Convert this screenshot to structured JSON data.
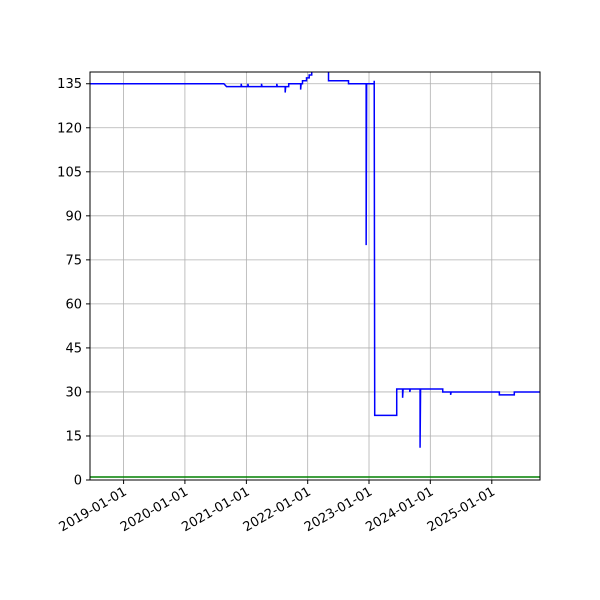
{
  "chart_data": {
    "type": "line",
    "title": "",
    "xlabel": "",
    "ylabel": "",
    "xlim": [
      "2018-06-15",
      "2025-10-15"
    ],
    "ylim": [
      0,
      139
    ],
    "grid": true,
    "x_ticks": [
      "2019-01-01",
      "2020-01-01",
      "2021-01-01",
      "2022-01-01",
      "2023-01-01",
      "2024-01-01",
      "2025-01-01"
    ],
    "y_ticks": [
      0,
      15,
      30,
      45,
      60,
      75,
      90,
      105,
      120,
      135
    ],
    "series": [
      {
        "color": "#0000ff",
        "points": [
          [
            "2018-06-15",
            135
          ],
          [
            "2020-08-20",
            135
          ],
          [
            "2020-09-05",
            134
          ],
          [
            "2020-12-01",
            134
          ],
          [
            "2020-12-01",
            135
          ],
          [
            "2020-12-04",
            134
          ],
          [
            "2021-01-10",
            134
          ],
          [
            "2021-01-10",
            135
          ],
          [
            "2021-01-13",
            134
          ],
          [
            "2021-04-01",
            134
          ],
          [
            "2021-04-01",
            135
          ],
          [
            "2021-04-04",
            134
          ],
          [
            "2021-07-01",
            134
          ],
          [
            "2021-07-01",
            135
          ],
          [
            "2021-07-04",
            134
          ],
          [
            "2021-08-20",
            134
          ],
          [
            "2021-08-20",
            132
          ],
          [
            "2021-08-23",
            134
          ],
          [
            "2021-09-10",
            134
          ],
          [
            "2021-09-10",
            135
          ],
          [
            "2021-11-20",
            135
          ],
          [
            "2021-11-20",
            133
          ],
          [
            "2021-11-23",
            135
          ],
          [
            "2021-12-01",
            135
          ],
          [
            "2021-12-01",
            136
          ],
          [
            "2021-12-25",
            136
          ],
          [
            "2021-12-25",
            137
          ],
          [
            "2022-01-10",
            137
          ],
          [
            "2022-01-10",
            138
          ],
          [
            "2022-01-25",
            138
          ],
          [
            "2022-01-25",
            140
          ],
          [
            "2022-05-05",
            140
          ],
          [
            "2022-05-05",
            136
          ],
          [
            "2022-09-01",
            136
          ],
          [
            "2022-09-01",
            135
          ],
          [
            "2022-12-15",
            135
          ],
          [
            "2022-12-15",
            80
          ],
          [
            "2022-12-18",
            135
          ],
          [
            "2023-02-01",
            135
          ],
          [
            "2023-02-01",
            136
          ],
          [
            "2023-02-04",
            22
          ],
          [
            "2023-06-15",
            22
          ],
          [
            "2023-06-15",
            31
          ],
          [
            "2023-07-20",
            31
          ],
          [
            "2023-07-20",
            28
          ],
          [
            "2023-07-23",
            31
          ],
          [
            "2023-09-01",
            31
          ],
          [
            "2023-09-01",
            30
          ],
          [
            "2023-09-04",
            31
          ],
          [
            "2023-11-01",
            31
          ],
          [
            "2023-11-01",
            11
          ],
          [
            "2023-11-04",
            31
          ],
          [
            "2024-03-15",
            31
          ],
          [
            "2024-03-15",
            30
          ],
          [
            "2024-05-01",
            30
          ],
          [
            "2024-05-01",
            29
          ],
          [
            "2024-05-04",
            30
          ],
          [
            "2025-02-15",
            30
          ],
          [
            "2025-02-15",
            29
          ],
          [
            "2025-05-15",
            29
          ],
          [
            "2025-05-15",
            30
          ],
          [
            "2025-10-15",
            30
          ]
        ]
      },
      {
        "color": "#008000",
        "points": [
          [
            "2018-06-15",
            1
          ],
          [
            "2025-10-15",
            1
          ]
        ]
      }
    ]
  }
}
